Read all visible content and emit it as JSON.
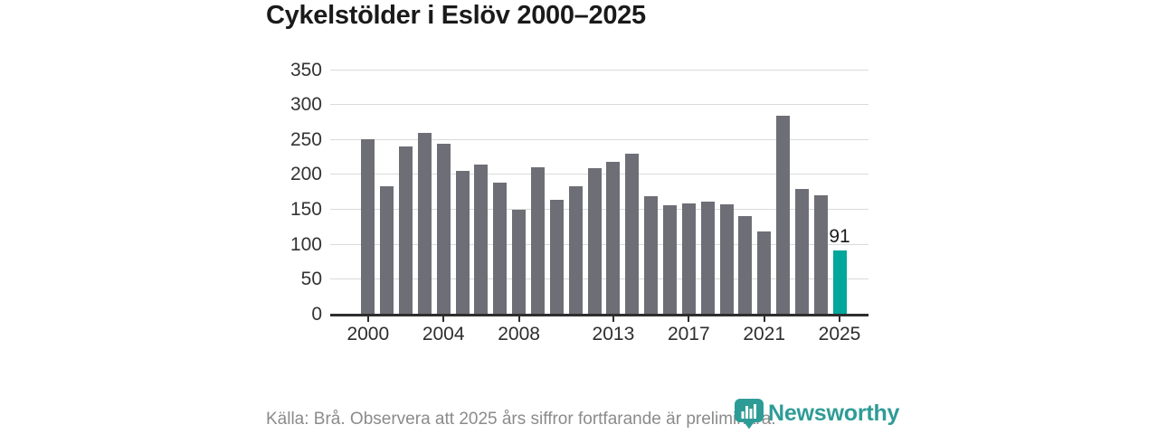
{
  "title": "Cykelstölder i Eslöv 2000–2025",
  "source_note": "Källa: Brå. Observera att 2025 års siffror fortfarande är preliminära.",
  "logo": {
    "text": "Newsworthy",
    "icon": "newsworthy-marker-bar-chart-icon"
  },
  "colors": {
    "bar_default": "#6e6e76",
    "bar_highlight": "#00a79b",
    "grid": "#dadada",
    "axis": "#2e2e2e",
    "tick_text": "#2e2e2e",
    "title_text": "#1a1a1a",
    "muted_text": "#8b8b8b",
    "logo_teal": "#2e9c96"
  },
  "chart_data": {
    "type": "bar",
    "title": "Cykelstölder i Eslöv 2000–2025",
    "xlabel": "",
    "ylabel": "",
    "x": [
      2000,
      2001,
      2002,
      2003,
      2004,
      2005,
      2006,
      2007,
      2008,
      2009,
      2010,
      2011,
      2012,
      2013,
      2014,
      2015,
      2016,
      2017,
      2018,
      2019,
      2020,
      2021,
      2022,
      2023,
      2024,
      2025
    ],
    "values": [
      250,
      182,
      240,
      259,
      243,
      205,
      214,
      188,
      149,
      210,
      163,
      183,
      208,
      217,
      229,
      168,
      155,
      158,
      161,
      156,
      140,
      118,
      284,
      178,
      169,
      91
    ],
    "highlight_year": 2025,
    "highlight_label": "91",
    "ylim": [
      0,
      350
    ],
    "y_ticks": [
      0,
      50,
      100,
      150,
      200,
      250,
      300,
      350
    ],
    "x_tick_years": [
      "2000",
      "2004",
      "2008",
      "2013",
      "2017",
      "2021",
      "2025"
    ],
    "grid": true,
    "legend": false
  }
}
